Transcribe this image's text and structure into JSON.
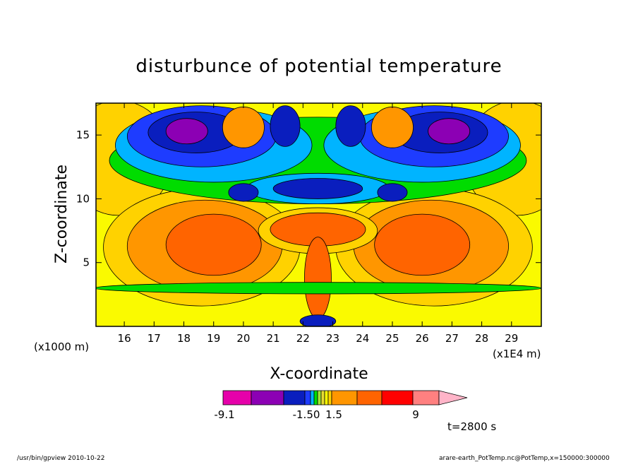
{
  "chart_data": {
    "type": "heatmap",
    "title": "disturbunce of potential temperature",
    "xlabel": "X-coordinate",
    "ylabel": "Z-coordinate",
    "x_unit_note": "(x1E4 m)",
    "y_unit_note": "(x1000 m)",
    "xlim": [
      15.05,
      30.0
    ],
    "ylim": [
      0.0,
      17.5
    ],
    "x_ticks": [
      "16",
      "17",
      "18",
      "19",
      "20",
      "21",
      "22",
      "23",
      "24",
      "25",
      "26",
      "27",
      "28",
      "29"
    ],
    "y_ticks": [
      "5",
      "10",
      "15"
    ],
    "time_label": "t=2800 s",
    "colorbar": {
      "labels": [
        "-9.1",
        "-1.50",
        "1.5",
        "9"
      ],
      "colors": [
        "#e600aa",
        "#8c00b4",
        "#0a1ebe",
        "#1e3cff",
        "#00b4ff",
        "#00dc00",
        "#a0e632",
        "#e6dc32",
        "#fafa00",
        "#ffd200",
        "#ff9600",
        "#ff6400",
        "#ff0000",
        "#ff8080",
        "#ffb4c8"
      ]
    },
    "levels": {
      "background": "#fafa00",
      "regions": [
        {
          "name": "upper-warm-left",
          "x": 15.8,
          "y": 13.2,
          "rx": 1.8,
          "ry": 4.5,
          "color": "#ffd200"
        },
        {
          "name": "upper-warm-right",
          "x": 29.2,
          "y": 13.2,
          "rx": 1.8,
          "ry": 4.5,
          "color": "#ffd200"
        },
        {
          "name": "lower-warm-left",
          "x": 18.6,
          "y": 6.2,
          "rx": 3.3,
          "ry": 4.6,
          "color": "#ffd200"
        },
        {
          "name": "lower-warm-right",
          "x": 26.4,
          "y": 6.2,
          "rx": 3.3,
          "ry": 4.6,
          "color": "#ffd200"
        },
        {
          "name": "lower-warm-left-2",
          "x": 18.7,
          "y": 6.3,
          "rx": 2.6,
          "ry": 3.6,
          "color": "#ff9600"
        },
        {
          "name": "lower-warm-right-2",
          "x": 26.3,
          "y": 6.3,
          "rx": 2.6,
          "ry": 3.6,
          "color": "#ff9600"
        },
        {
          "name": "lower-warm-left-3",
          "x": 19.0,
          "y": 6.4,
          "rx": 1.6,
          "ry": 2.4,
          "color": "#ff6400"
        },
        {
          "name": "lower-warm-right-3",
          "x": 26.0,
          "y": 6.4,
          "rx": 1.6,
          "ry": 2.4,
          "color": "#ff6400"
        },
        {
          "name": "cold-band",
          "x": 22.5,
          "y": 13.0,
          "rx": 7.0,
          "ry": 3.4,
          "color": "#00dc00"
        },
        {
          "name": "cold-left-cyan",
          "x": 19.0,
          "y": 14.2,
          "rx": 3.3,
          "ry": 2.9,
          "color": "#00b4ff"
        },
        {
          "name": "cold-right-cyan",
          "x": 26.0,
          "y": 14.2,
          "rx": 3.3,
          "ry": 2.9,
          "color": "#00b4ff"
        },
        {
          "name": "cold-left",
          "x": 18.6,
          "y": 14.9,
          "rx": 2.5,
          "ry": 2.4,
          "color": "#1e3cff"
        },
        {
          "name": "cold-right",
          "x": 26.4,
          "y": 14.9,
          "rx": 2.5,
          "ry": 2.4,
          "color": "#1e3cff"
        },
        {
          "name": "cold-left-2",
          "x": 18.4,
          "y": 15.2,
          "rx": 1.6,
          "ry": 1.6,
          "color": "#0a1ebe"
        },
        {
          "name": "cold-right-2",
          "x": 26.6,
          "y": 15.2,
          "rx": 1.6,
          "ry": 1.6,
          "color": "#0a1ebe"
        },
        {
          "name": "cold-left-core",
          "x": 18.1,
          "y": 15.3,
          "rx": 0.7,
          "ry": 1.0,
          "color": "#8c00b4"
        },
        {
          "name": "cold-right-core",
          "x": 26.9,
          "y": 15.3,
          "rx": 0.7,
          "ry": 1.0,
          "color": "#8c00b4"
        },
        {
          "name": "upper-orange-left",
          "x": 20.0,
          "y": 15.6,
          "rx": 0.7,
          "ry": 1.6,
          "color": "#ff9600"
        },
        {
          "name": "upper-orange-right",
          "x": 25.0,
          "y": 15.6,
          "rx": 0.7,
          "ry": 1.6,
          "color": "#ff9600"
        },
        {
          "name": "upper-blue-left",
          "x": 21.4,
          "y": 15.7,
          "rx": 0.5,
          "ry": 1.6,
          "color": "#0a1ebe"
        },
        {
          "name": "upper-blue-right",
          "x": 23.6,
          "y": 15.7,
          "rx": 0.5,
          "ry": 1.6,
          "color": "#0a1ebe"
        },
        {
          "name": "center-cyan",
          "x": 22.5,
          "y": 10.8,
          "rx": 2.4,
          "ry": 1.2,
          "color": "#00b4ff"
        },
        {
          "name": "center-blue",
          "x": 22.5,
          "y": 10.8,
          "rx": 1.5,
          "ry": 0.8,
          "color": "#0a1ebe"
        },
        {
          "name": "center-left-blue",
          "x": 20.0,
          "y": 10.5,
          "rx": 0.5,
          "ry": 0.7,
          "color": "#0a1ebe"
        },
        {
          "name": "center-right-blue",
          "x": 25.0,
          "y": 10.5,
          "rx": 0.5,
          "ry": 0.7,
          "color": "#0a1ebe"
        },
        {
          "name": "mid-warm",
          "x": 22.5,
          "y": 7.5,
          "rx": 2.0,
          "ry": 1.8,
          "color": "#ffd200"
        },
        {
          "name": "mid-orange",
          "x": 22.5,
          "y": 7.6,
          "rx": 1.6,
          "ry": 1.3,
          "color": "#ff6400"
        },
        {
          "name": "plume",
          "x": 22.5,
          "y": 3.8,
          "rx": 0.45,
          "ry": 3.2,
          "color": "#ff6400"
        },
        {
          "name": "bottom-band",
          "x": 22.5,
          "y": 3.0,
          "rx": 7.5,
          "ry": 0.45,
          "color": "#00dc00"
        },
        {
          "name": "bottom-blue",
          "x": 22.5,
          "y": 0.4,
          "rx": 0.6,
          "ry": 0.5,
          "color": "#0a1ebe"
        }
      ]
    }
  },
  "footer": {
    "left": "/usr/bin/gpview   2010-10-22",
    "right": "arare-earth_PotTemp.nc@PotTemp,x=150000:300000"
  }
}
